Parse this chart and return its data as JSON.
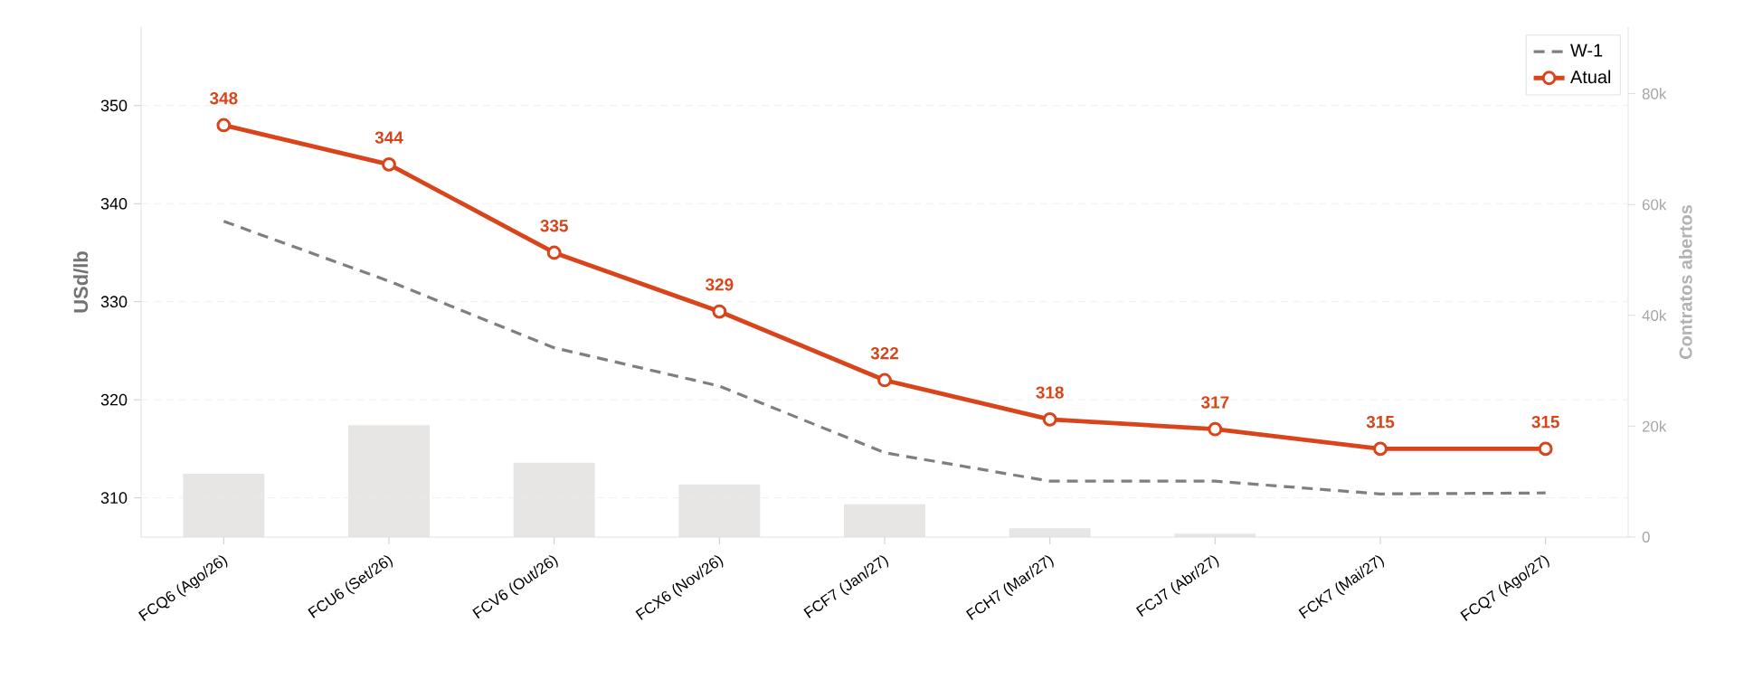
{
  "chart_data": {
    "type": "line",
    "ylabel": "USd/lb",
    "y2label": "Contratos abertos",
    "categories": [
      "FCQ6 (Ago/26)",
      "FCU6 (Set/26)",
      "FCV6 (Out/26)",
      "FCX6 (Nov/26)",
      "FCF7 (Jan/27)",
      "FCH7 (Mar/27)",
      "FCJ7 (Abr/27)",
      "FCK7 (Mai/27)",
      "FCQ7 (Ago/27)"
    ],
    "ylim": [
      306,
      358
    ],
    "yticks": [
      310,
      320,
      330,
      340,
      350
    ],
    "y2lim": [
      0,
      92000
    ],
    "y2ticks": [
      0,
      {
        "value": 20000,
        "label": "20k"
      },
      {
        "value": 40000,
        "label": "40k"
      },
      {
        "value": 60000,
        "label": "60k"
      },
      {
        "value": 80000,
        "label": "80k"
      }
    ],
    "grid": "y",
    "legend": "top right",
    "series": [
      {
        "type": "bar",
        "axis": "y2",
        "color": "#e8e5e5",
        "values": [
          11400,
          20200,
          13400,
          9500,
          5900,
          1600,
          600,
          null,
          null
        ]
      },
      {
        "name": "W-1",
        "color": "#7f7f7f",
        "line_style": "dashed",
        "marker": "none",
        "values": [
          338.2,
          332.1,
          325.3,
          321.4,
          314.6,
          311.7,
          311.7,
          310.4,
          310.5
        ]
      },
      {
        "name": "Atual",
        "color": "#d9441a",
        "line_style": "solid",
        "marker": "circle",
        "values": [
          348,
          344,
          335,
          329,
          322,
          318,
          317,
          315,
          315
        ],
        "value_labels": [
          "348",
          "344",
          "335",
          "329",
          "322",
          "318",
          "317",
          "315",
          "315"
        ]
      }
    ]
  }
}
